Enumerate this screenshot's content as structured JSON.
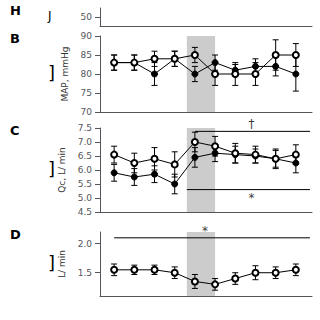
{
  "chart_data": [
    {
      "type": "line",
      "title": "H",
      "bracket": "J",
      "xlim": [
        0.3,
        10.8
      ],
      "xticks": [],
      "ylim": [
        48,
        52
      ],
      "yticks": [
        50
      ],
      "tick_labels": "y",
      "grid": false
    },
    {
      "type": "line",
      "title": "B",
      "bracket": "]",
      "ylabel": "MAP, mmHg",
      "x": [
        1,
        2,
        3,
        4,
        5,
        6,
        7,
        8,
        9,
        10
      ],
      "xlim": [
        0.3,
        10.8
      ],
      "xticks": [],
      "ylim": [
        70,
        90
      ],
      "yticks": [
        70,
        75,
        80,
        85,
        90
      ],
      "tick_labels": "y",
      "grid": false,
      "shade": {
        "x": [
          4.6,
          6.0
        ],
        "color": "#cccccc"
      },
      "series": [
        {
          "color": "#000000",
          "marker": "circle",
          "values": [
            83,
            83,
            80,
            84,
            80,
            83,
            81,
            82,
            82,
            80
          ],
          "errors": [
            2.0,
            2.0,
            3.0,
            2.0,
            2.0,
            2.0,
            1.5,
            2.0,
            2.5,
            4.5
          ]
        },
        {
          "color": "#000000",
          "marker": "open_circle",
          "values": [
            83,
            83,
            84,
            84,
            85,
            80,
            80,
            80,
            85,
            85
          ],
          "errors": [
            2.0,
            2.0,
            2.0,
            2.0,
            2.0,
            3.0,
            3.0,
            3.0,
            4.0,
            3.0
          ]
        }
      ]
    },
    {
      "type": "line",
      "title": "C",
      "bracket": "]",
      "ylabel": "Qc, L/ min",
      "x": [
        1,
        2,
        3,
        4,
        5,
        6,
        7,
        8,
        9,
        10
      ],
      "xlim": [
        0.3,
        10.8
      ],
      "xticks": [],
      "ylim": [
        4.5,
        7.5
      ],
      "yticks": [
        4.5,
        {
          "value": 5.0,
          "label": "5.0"
        },
        5.5,
        {
          "value": 6.0,
          "label": "6.0"
        },
        6.5,
        {
          "value": 7.0,
          "label": "7.0"
        },
        7.5
      ],
      "tick_labels": "y",
      "grid": false,
      "shade": {
        "x": [
          4.6,
          6.0
        ],
        "color": "#cccccc"
      },
      "series": [
        {
          "color": "#000000",
          "marker": "circle",
          "values": [
            5.9,
            5.75,
            5.85,
            5.5,
            6.45,
            6.6,
            6.55,
            6.5,
            6.4,
            6.25
          ],
          "errors": [
            0.3,
            0.3,
            0.3,
            0.35,
            0.35,
            0.3,
            0.3,
            0.25,
            0.3,
            0.35
          ]
        },
        {
          "color": "#000000",
          "marker": "open_circle",
          "values": [
            6.55,
            6.25,
            6.4,
            6.2,
            7.0,
            6.85,
            6.6,
            6.55,
            6.4,
            6.55
          ],
          "errors": [
            0.3,
            0.35,
            0.4,
            0.45,
            0.35,
            0.35,
            0.35,
            0.3,
            0.35,
            0.35
          ]
        }
      ],
      "annotations": [
        {
          "text": "†",
          "x": 7.8,
          "y": 7.38,
          "line_x": [
            5.0,
            10.7
          ],
          "line_y": 7.38,
          "color": "#000000"
        },
        {
          "text": "*",
          "x": 7.8,
          "y": 5.25,
          "line_x": [
            4.6,
            10.7
          ],
          "line_y": 5.3,
          "color": "#000000"
        }
      ]
    },
    {
      "type": "line",
      "title": "D",
      "bracket": "]",
      "ylabel": "L/ min",
      "x": [
        1,
        2,
        3,
        4,
        5,
        6,
        7,
        8,
        9,
        10
      ],
      "xlim": [
        0.3,
        10.8
      ],
      "xticks": [],
      "ylim": [
        1.1,
        2.2
      ],
      "yticks": [
        1.5,
        {
          "value": 2.0,
          "label": "2.0"
        }
      ],
      "tick_labels": "y",
      "grid": false,
      "shade": {
        "x": [
          4.6,
          6.0
        ],
        "color": "#cccccc"
      },
      "series": [
        {
          "color": "#000000",
          "marker": "open_circle",
          "values": [
            1.55,
            1.55,
            1.55,
            1.5,
            1.35,
            1.3,
            1.4,
            1.5,
            1.5,
            1.55
          ],
          "errors": [
            0.1,
            0.08,
            0.08,
            0.1,
            0.12,
            0.1,
            0.1,
            0.12,
            0.1,
            0.1
          ]
        }
      ],
      "annotations": [
        {
          "text": "*",
          "x": 5.5,
          "y": 2.1,
          "line_x": [
            1.0,
            10.7
          ],
          "line_y": 2.1,
          "color": "#000000"
        }
      ]
    }
  ]
}
